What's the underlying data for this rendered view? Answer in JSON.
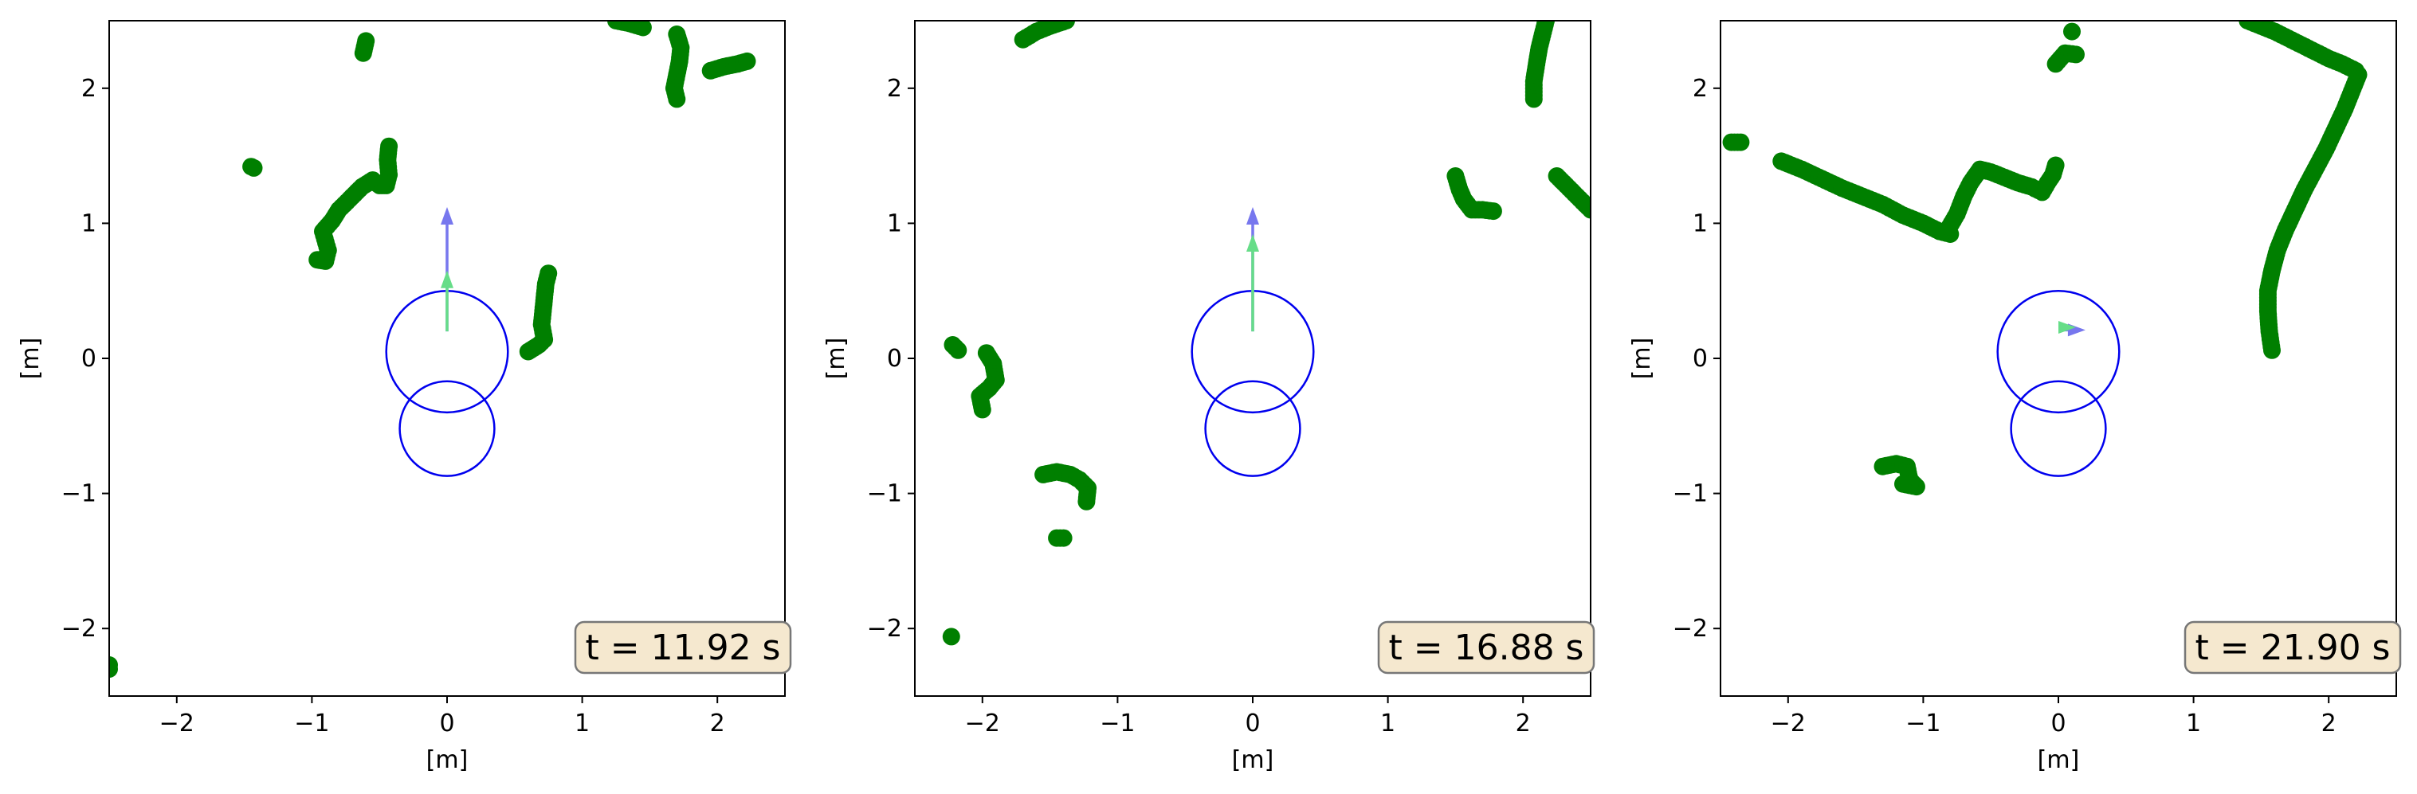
{
  "colors": {
    "points": "#007f00",
    "circles": "#0000ee",
    "arrow_blue": "#7777ee",
    "arrow_green": "#66dd88",
    "annot_fill": "#f5e8cf",
    "annot_stroke": "#777777"
  },
  "chart_data": [
    {
      "type": "scatter",
      "xlabel": "[m]",
      "ylabel": "[m]",
      "xlim": [
        -2.5,
        2.5
      ],
      "ylim": [
        -2.5,
        2.5
      ],
      "xticks": [
        -2,
        -1,
        0,
        1,
        2
      ],
      "yticks": [
        -2,
        -1,
        0,
        1,
        2
      ],
      "x_tick_labels": [
        "−2",
        "−1",
        "0",
        "1",
        "2"
      ],
      "y_tick_labels": [
        "−2",
        "−1",
        "0",
        "1",
        "2"
      ],
      "annotation": "t = 11.92 s",
      "circles": [
        {
          "cx": 0,
          "cy": 0.05,
          "r": 0.45
        },
        {
          "cx": 0,
          "cy": -0.52,
          "r": 0.35
        }
      ],
      "arrows": [
        {
          "color": "blue",
          "x0": 0,
          "y0": 0.2,
          "x1": 0,
          "y1": 1.12
        },
        {
          "color": "green",
          "x0": 0,
          "y0": 0.2,
          "x1": 0,
          "y1": 0.65
        }
      ],
      "segments": [
        [
          [
            -2.5,
            -2.27
          ],
          [
            -2.5,
            -2.3
          ]
        ],
        [
          [
            -1.45,
            1.42
          ],
          [
            -1.43,
            1.41
          ]
        ],
        [
          [
            -0.6,
            2.35
          ],
          [
            -0.62,
            2.26
          ]
        ],
        [
          [
            -0.96,
            0.73
          ],
          [
            -0.9,
            0.72
          ],
          [
            -0.88,
            0.8
          ],
          [
            -0.92,
            0.94
          ],
          [
            -0.85,
            1.02
          ],
          [
            -0.8,
            1.1
          ],
          [
            -0.72,
            1.18
          ],
          [
            -0.63,
            1.27
          ],
          [
            -0.55,
            1.32
          ],
          [
            -0.5,
            1.28
          ],
          [
            -0.45,
            1.28
          ],
          [
            -0.43,
            1.36
          ],
          [
            -0.44,
            1.47
          ],
          [
            -0.43,
            1.57
          ]
        ],
        [
          [
            0.6,
            0.05
          ],
          [
            0.68,
            0.1
          ],
          [
            0.72,
            0.14
          ],
          [
            0.7,
            0.25
          ],
          [
            0.71,
            0.35
          ],
          [
            0.72,
            0.45
          ],
          [
            0.73,
            0.55
          ],
          [
            0.75,
            0.63
          ]
        ],
        [
          [
            1.25,
            2.5
          ],
          [
            1.35,
            2.48
          ],
          [
            1.45,
            2.45
          ]
        ],
        [
          [
            1.7,
            1.92
          ],
          [
            1.68,
            2.0
          ],
          [
            1.7,
            2.1
          ],
          [
            1.72,
            2.2
          ],
          [
            1.73,
            2.3
          ],
          [
            1.7,
            2.4
          ]
        ],
        [
          [
            1.95,
            2.13
          ],
          [
            2.05,
            2.16
          ],
          [
            2.15,
            2.18
          ],
          [
            2.22,
            2.2
          ]
        ]
      ]
    },
    {
      "type": "scatter",
      "xlabel": "[m]",
      "ylabel": "[m]",
      "xlim": [
        -2.5,
        2.5
      ],
      "ylim": [
        -2.5,
        2.5
      ],
      "xticks": [
        -2,
        -1,
        0,
        1,
        2
      ],
      "yticks": [
        -2,
        -1,
        0,
        1,
        2
      ],
      "x_tick_labels": [
        "−2",
        "−1",
        "0",
        "1",
        "2"
      ],
      "y_tick_labels": [
        "−2",
        "−1",
        "0",
        "1",
        "2"
      ],
      "annotation": "t = 16.88 s",
      "circles": [
        {
          "cx": 0,
          "cy": 0.05,
          "r": 0.45
        },
        {
          "cx": 0,
          "cy": -0.52,
          "r": 0.35
        }
      ],
      "arrows": [
        {
          "color": "blue",
          "x0": 0,
          "y0": 0.2,
          "x1": 0,
          "y1": 1.12
        },
        {
          "color": "green",
          "x0": 0,
          "y0": 0.2,
          "x1": 0,
          "y1": 0.92
        }
      ],
      "segments": [
        [
          [
            -1.7,
            2.36
          ],
          [
            -1.6,
            2.42
          ],
          [
            -1.5,
            2.46
          ],
          [
            -1.38,
            2.5
          ]
        ],
        [
          [
            2.08,
            1.92
          ],
          [
            2.08,
            2.05
          ],
          [
            2.1,
            2.18
          ],
          [
            2.12,
            2.3
          ],
          [
            2.15,
            2.42
          ],
          [
            2.17,
            2.5
          ]
        ],
        [
          [
            -2.22,
            0.1
          ],
          [
            -2.18,
            0.06
          ]
        ],
        [
          [
            -1.97,
            0.04
          ],
          [
            -1.92,
            -0.04
          ],
          [
            -1.9,
            -0.16
          ],
          [
            -1.95,
            -0.22
          ],
          [
            -2.02,
            -0.28
          ],
          [
            -2.0,
            -0.38
          ]
        ],
        [
          [
            -1.55,
            -0.86
          ],
          [
            -1.45,
            -0.84
          ],
          [
            -1.35,
            -0.86
          ],
          [
            -1.28,
            -0.9
          ],
          [
            -1.22,
            -0.96
          ],
          [
            -1.23,
            -1.06
          ]
        ],
        [
          [
            -1.45,
            -1.33
          ],
          [
            -1.4,
            -1.33
          ]
        ],
        [
          [
            -2.23,
            -2.06
          ]
        ],
        [
          [
            1.5,
            1.35
          ],
          [
            1.53,
            1.25
          ],
          [
            1.56,
            1.18
          ],
          [
            1.62,
            1.1
          ],
          [
            1.7,
            1.1
          ],
          [
            1.78,
            1.09
          ]
        ],
        [
          [
            2.25,
            1.35
          ],
          [
            2.32,
            1.28
          ],
          [
            2.4,
            1.2
          ],
          [
            2.5,
            1.1
          ]
        ]
      ]
    },
    {
      "type": "scatter",
      "xlabel": "[m]",
      "ylabel": "[m]",
      "xlim": [
        -2.5,
        2.5
      ],
      "ylim": [
        -2.5,
        2.5
      ],
      "xticks": [
        -2,
        -1,
        0,
        1,
        2
      ],
      "yticks": [
        -2,
        -1,
        0,
        1,
        2
      ],
      "x_tick_labels": [
        "−2",
        "−1",
        "0",
        "1",
        "2"
      ],
      "y_tick_labels": [
        "−2",
        "−1",
        "0",
        "1",
        "2"
      ],
      "annotation": "t = 21.90 s",
      "circles": [
        {
          "cx": 0,
          "cy": 0.05,
          "r": 0.45
        },
        {
          "cx": 0,
          "cy": -0.52,
          "r": 0.35
        }
      ],
      "arrows": [
        {
          "color": "blue",
          "x0": 0,
          "y0": 0.21,
          "x1": 0.2,
          "y1": 0.21
        },
        {
          "color": "green",
          "x0": 0,
          "y0": 0.23,
          "x1": 0.13,
          "y1": 0.23
        }
      ],
      "segments": [
        [
          [
            -2.42,
            1.6
          ],
          [
            -2.35,
            1.6
          ]
        ],
        [
          [
            -2.05,
            1.46
          ],
          [
            -1.9,
            1.4
          ],
          [
            -1.75,
            1.33
          ],
          [
            -1.6,
            1.26
          ],
          [
            -1.45,
            1.2
          ],
          [
            -1.3,
            1.14
          ],
          [
            -1.15,
            1.06
          ],
          [
            -1.0,
            1.0
          ],
          [
            -0.88,
            0.94
          ],
          [
            -0.8,
            0.92
          ]
        ],
        [
          [
            -0.82,
            0.95
          ],
          [
            -0.75,
            1.07
          ],
          [
            -0.7,
            1.2
          ],
          [
            -0.65,
            1.3
          ],
          [
            -0.58,
            1.4
          ],
          [
            -0.5,
            1.38
          ],
          [
            -0.4,
            1.34
          ],
          [
            -0.3,
            1.3
          ],
          [
            -0.2,
            1.27
          ],
          [
            -0.12,
            1.23
          ],
          [
            -0.08,
            1.3
          ],
          [
            -0.04,
            1.36
          ],
          [
            -0.02,
            1.43
          ]
        ],
        [
          [
            0.1,
            2.42
          ]
        ],
        [
          [
            -0.02,
            2.18
          ],
          [
            0.05,
            2.26
          ],
          [
            0.13,
            2.25
          ]
        ],
        [
          [
            1.58,
            0.06
          ],
          [
            1.56,
            0.2
          ],
          [
            1.55,
            0.35
          ],
          [
            1.55,
            0.5
          ],
          [
            1.58,
            0.65
          ],
          [
            1.62,
            0.8
          ],
          [
            1.68,
            0.95
          ],
          [
            1.75,
            1.1
          ],
          [
            1.82,
            1.25
          ],
          [
            1.9,
            1.4
          ],
          [
            1.98,
            1.55
          ],
          [
            2.05,
            1.7
          ],
          [
            2.12,
            1.85
          ],
          [
            2.18,
            2.0
          ],
          [
            2.22,
            2.1
          ]
        ],
        [
          [
            2.2,
            2.13
          ],
          [
            2.1,
            2.18
          ],
          [
            2.0,
            2.22
          ],
          [
            1.9,
            2.27
          ],
          [
            1.8,
            2.32
          ],
          [
            1.7,
            2.37
          ],
          [
            1.6,
            2.42
          ],
          [
            1.5,
            2.46
          ],
          [
            1.4,
            2.5
          ]
        ],
        [
          [
            -1.3,
            -0.8
          ],
          [
            -1.2,
            -0.78
          ],
          [
            -1.12,
            -0.8
          ],
          [
            -1.1,
            -0.9
          ],
          [
            -1.05,
            -0.95
          ],
          [
            -1.15,
            -0.93
          ]
        ]
      ]
    }
  ]
}
